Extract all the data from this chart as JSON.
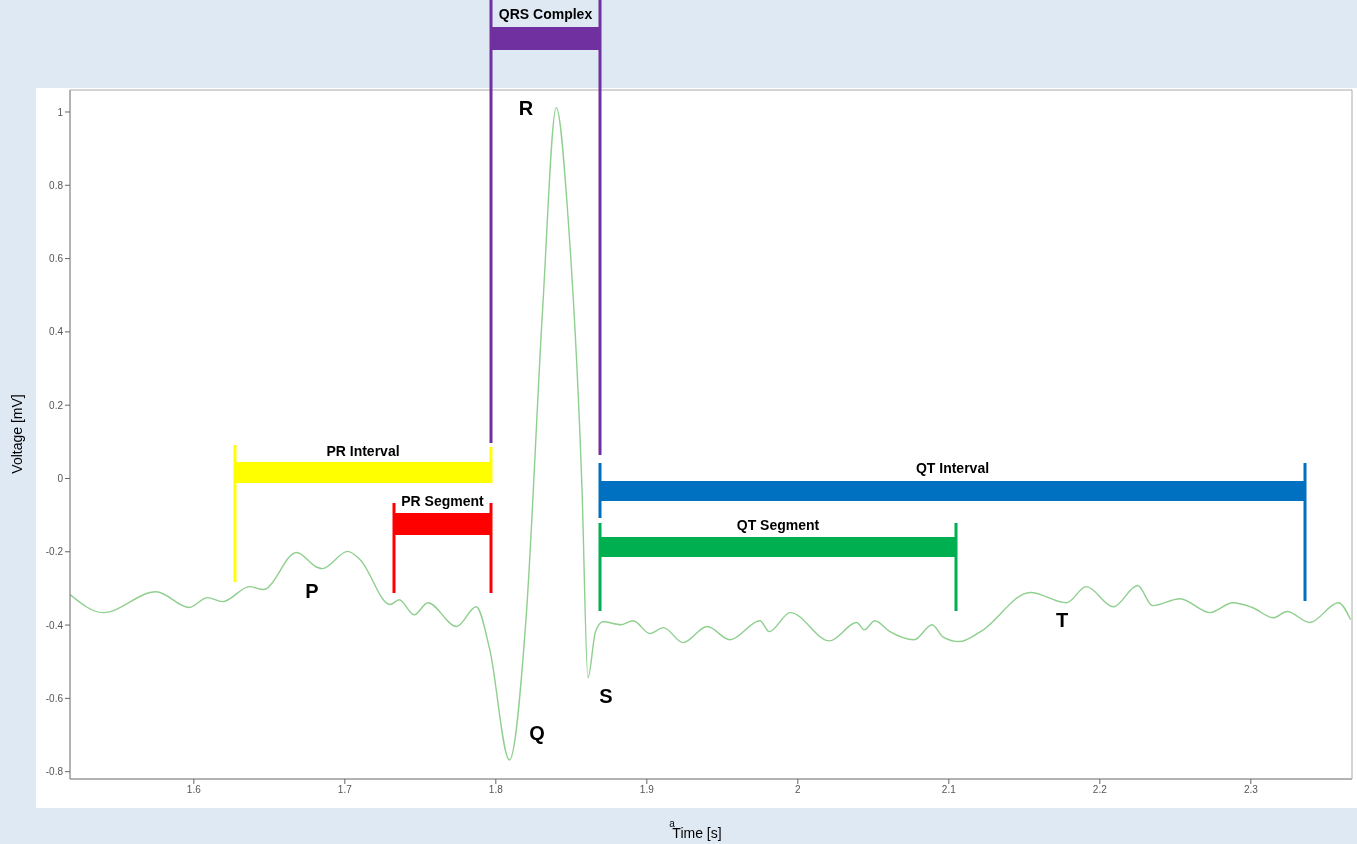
{
  "chart_data": {
    "type": "line",
    "xlabel": "Time [s]",
    "ylabel": "Voltage [mV]",
    "xlim": [
      1.518,
      2.367
    ],
    "ylim": [
      -0.82,
      1.06
    ],
    "xticks": [
      1.6,
      1.7,
      1.8,
      1.9,
      2,
      2.1,
      2.2,
      2.3
    ],
    "yticks": [
      -0.8,
      -0.6,
      -0.4,
      -0.2,
      0,
      0.2,
      0.4,
      0.6,
      0.8,
      1
    ],
    "grid": false,
    "legend": false,
    "marker": "none",
    "line_style": "solid",
    "series": [
      {
        "color": "#8fcf8f",
        "x": [
          1.518,
          1.54,
          1.575,
          1.597,
          1.609,
          1.619,
          1.637,
          1.646,
          1.668,
          1.682,
          1.685,
          1.702,
          1.71,
          1.73,
          1.736,
          1.746,
          1.755,
          1.774,
          1.787,
          1.796,
          1.809,
          1.82,
          1.831,
          1.84,
          1.848,
          1.857,
          1.861,
          1.866,
          1.871,
          1.883,
          1.891,
          1.902,
          1.911,
          1.924,
          1.94,
          1.955,
          1.975,
          1.981,
          1.995,
          2.021,
          2.039,
          2.044,
          2.051,
          2.061,
          2.077,
          2.089,
          2.096,
          2.107,
          2.121,
          2.154,
          2.178,
          2.191,
          2.209,
          2.225,
          2.235,
          2.253,
          2.273,
          2.288,
          2.301,
          2.315,
          2.324,
          2.339,
          2.358,
          2.366
        ],
        "values": [
          -0.317,
          -0.366,
          -0.309,
          -0.352,
          -0.325,
          -0.336,
          -0.295,
          -0.303,
          -0.202,
          -0.243,
          -0.246,
          -0.199,
          -0.221,
          -0.344,
          -0.331,
          -0.372,
          -0.339,
          -0.404,
          -0.35,
          -0.467,
          -0.768,
          -0.383,
          0.462,
          1.012,
          0.702,
          -0.019,
          -0.544,
          -0.418,
          -0.391,
          -0.399,
          -0.388,
          -0.423,
          -0.407,
          -0.448,
          -0.404,
          -0.44,
          -0.388,
          -0.418,
          -0.366,
          -0.443,
          -0.393,
          -0.413,
          -0.388,
          -0.418,
          -0.44,
          -0.399,
          -0.432,
          -0.445,
          -0.418,
          -0.311,
          -0.339,
          -0.295,
          -0.35,
          -0.292,
          -0.347,
          -0.328,
          -0.366,
          -0.339,
          -0.352,
          -0.38,
          -0.363,
          -0.393,
          -0.339,
          -0.385
        ]
      }
    ],
    "annotations": [
      "PR Interval",
      "PR Segment",
      "QRS Complex",
      "QT Interval",
      "QT Segment",
      "P",
      "Q",
      "R",
      "S",
      "T",
      "a"
    ]
  }
}
